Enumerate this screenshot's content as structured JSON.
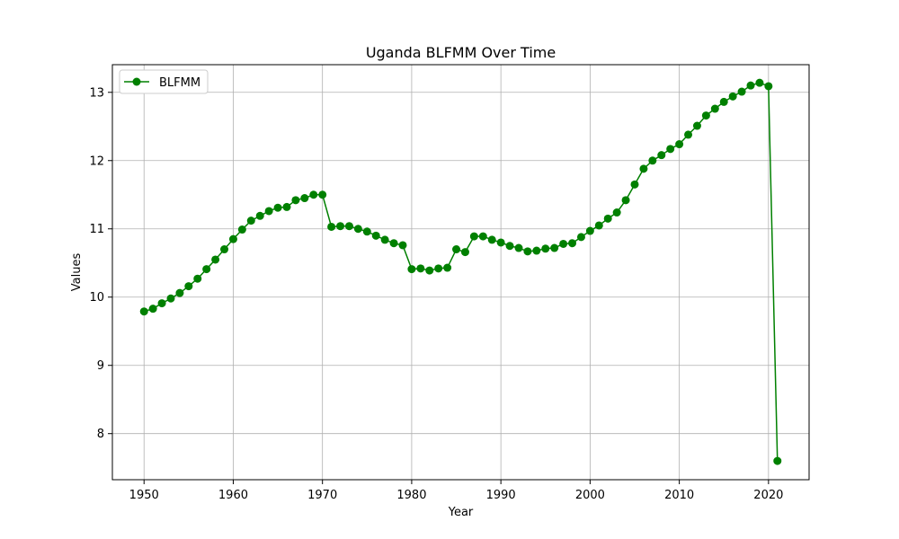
{
  "chart_data": {
    "type": "line",
    "title": "Uganda BLFMM Over Time",
    "xlabel": "Year",
    "ylabel": "Values",
    "xlim": [
      1946.45,
      2024.55
    ],
    "ylim": [
      7.325,
      13.405
    ],
    "x_ticks": [
      1950,
      1960,
      1970,
      1980,
      1990,
      2000,
      2010,
      2020
    ],
    "y_ticks": [
      8,
      9,
      10,
      11,
      12,
      13
    ],
    "grid": true,
    "legend_position": "top-left",
    "series": [
      {
        "name": "BLFMM",
        "color": "#008000",
        "marker": "circle",
        "x": [
          1950,
          1951,
          1952,
          1953,
          1954,
          1955,
          1956,
          1957,
          1958,
          1959,
          1960,
          1961,
          1962,
          1963,
          1964,
          1965,
          1966,
          1967,
          1968,
          1969,
          1970,
          1971,
          1972,
          1973,
          1974,
          1975,
          1976,
          1977,
          1978,
          1979,
          1980,
          1981,
          1982,
          1983,
          1984,
          1985,
          1986,
          1987,
          1988,
          1989,
          1990,
          1991,
          1992,
          1993,
          1994,
          1995,
          1996,
          1997,
          1998,
          1999,
          2000,
          2001,
          2002,
          2003,
          2004,
          2005,
          2006,
          2007,
          2008,
          2009,
          2010,
          2011,
          2012,
          2013,
          2014,
          2015,
          2016,
          2017,
          2018,
          2019,
          2020,
          2021
        ],
        "y": [
          9.79,
          9.83,
          9.91,
          9.98,
          10.06,
          10.16,
          10.27,
          10.41,
          10.55,
          10.7,
          10.85,
          10.99,
          11.12,
          11.19,
          11.26,
          11.31,
          11.32,
          11.42,
          11.45,
          11.5,
          11.5,
          11.03,
          11.04,
          11.04,
          11.0,
          10.96,
          10.9,
          10.84,
          10.79,
          10.76,
          10.41,
          10.42,
          10.39,
          10.42,
          10.43,
          10.7,
          10.66,
          10.89,
          10.89,
          10.84,
          10.8,
          10.75,
          10.72,
          10.67,
          10.68,
          10.71,
          10.72,
          10.78,
          10.79,
          10.88,
          10.97,
          11.05,
          11.15,
          11.24,
          11.42,
          11.65,
          11.88,
          12.0,
          12.08,
          12.17,
          12.24,
          12.38,
          12.51,
          12.66,
          12.76,
          12.86,
          12.94,
          13.01,
          13.1,
          13.14,
          13.09,
          7.6
        ]
      }
    ]
  }
}
